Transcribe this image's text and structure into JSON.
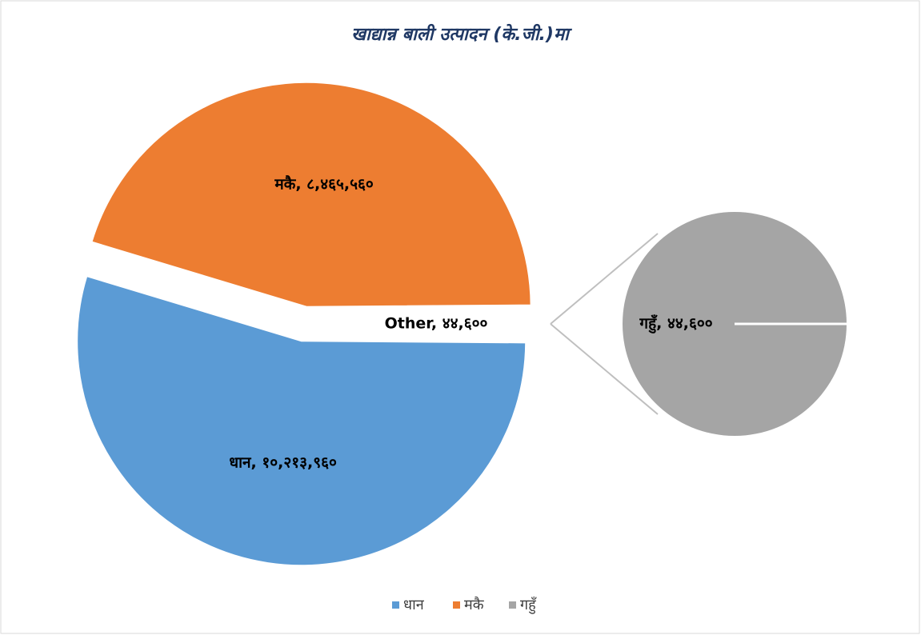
{
  "chart_data": {
    "type": "pie-of-pie",
    "title": "खाद्यान्न बाली उत्पादन (के.जी.)मा",
    "categories": [
      "धान",
      "मकै",
      "गहुँ"
    ],
    "values": [
      10213960,
      8465560,
      44600
    ],
    "value_labels": [
      "धान, १०,२१३,९६०",
      "मकै, ८,४६५,५६०",
      "गहुँ, ४४,६००"
    ],
    "colors": [
      "#5b9bd5",
      "#ed7d31",
      "#a5a5a5"
    ],
    "other": {
      "value": 44600,
      "value_label": "Other, ४४,६००"
    },
    "legend": "bottom"
  }
}
